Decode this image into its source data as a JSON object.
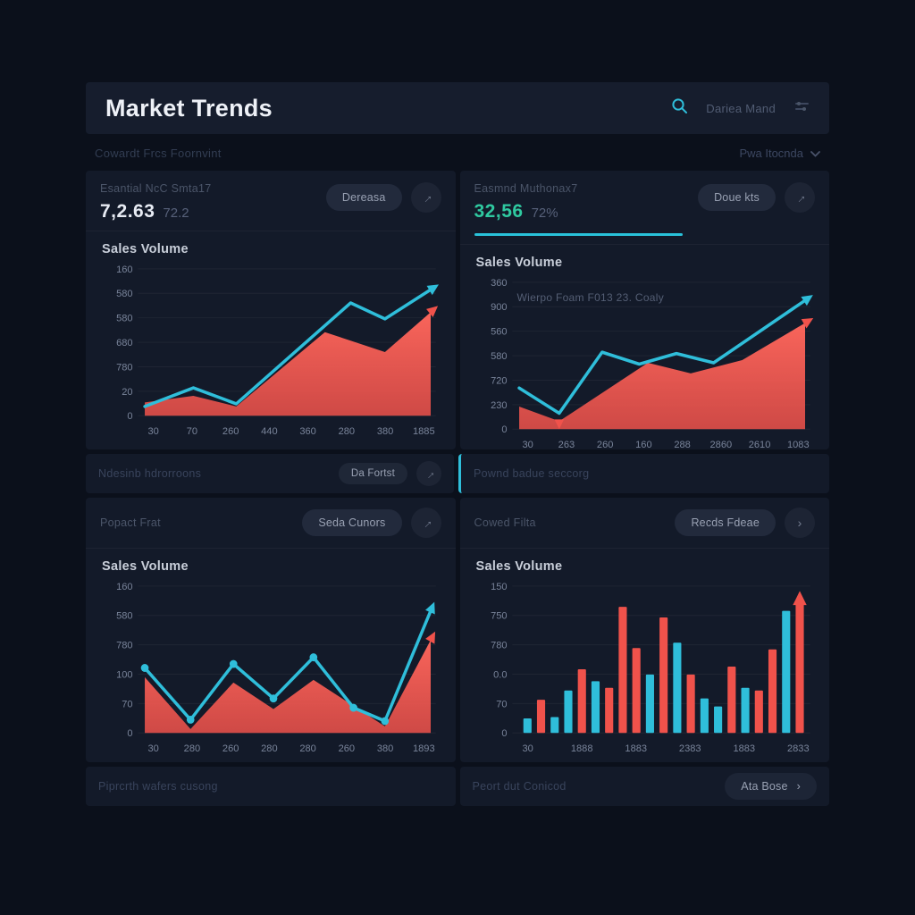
{
  "header": {
    "title": "Market Trends",
    "search_text": "Dariea Mand"
  },
  "subheader": {
    "left_text": "Cowardt Frcs Foornvint",
    "dropdown_label": "Pwa Itocnda"
  },
  "colors": {
    "cyan": "#2fbeda",
    "red": "#f0524b",
    "redLight": "#f9655b",
    "green": "#2fc9a0",
    "tick": "#79849a"
  },
  "panels": [
    {
      "label": "Esantial NcC Smta17",
      "value": "7,2.63",
      "suffix": "72.2",
      "button": "Dereasa",
      "chart": {
        "type": "area-line",
        "title": "Sales Volume",
        "y_ticks": [
          "160",
          "580",
          "580",
          "680",
          "780",
          "20",
          "0"
        ],
        "x_ticks": [
          "30",
          "70",
          "260",
          "440",
          "360",
          "280",
          "380",
          "1885"
        ],
        "line": [
          [
            0,
            0.07
          ],
          [
            0.17,
            0.21
          ],
          [
            0.32,
            0.09
          ],
          [
            0.72,
            0.85
          ],
          [
            0.84,
            0.73
          ],
          [
            1,
            0.95
          ]
        ],
        "area": [
          [
            0,
            0.1
          ],
          [
            0.17,
            0.15
          ],
          [
            0.32,
            0.07
          ],
          [
            0.63,
            0.63
          ],
          [
            0.84,
            0.48
          ],
          [
            1,
            0.78
          ]
        ],
        "line_arrow": true,
        "area_arrow": true,
        "markers": false
      }
    },
    {
      "label": "Easmnd Muthonax7",
      "value": "32,56",
      "suffix": "72%",
      "button": "Doue kts",
      "annotation": "Wierpo Foam F013 23. Coaly",
      "chart": {
        "type": "area-line",
        "title": "Sales Volume",
        "y_ticks": [
          "360",
          "900",
          "560",
          "580",
          "720",
          "230",
          "0"
        ],
        "x_ticks": [
          "30",
          "263",
          "260",
          "160",
          "288",
          "2860",
          "2610",
          "1083"
        ],
        "line": [
          [
            0,
            0.31
          ],
          [
            0.14,
            0.12
          ],
          [
            0.29,
            0.58
          ],
          [
            0.42,
            0.49
          ],
          [
            0.55,
            0.57
          ],
          [
            0.68,
            0.5
          ],
          [
            1,
            0.97
          ]
        ],
        "area": [
          [
            0,
            0.17
          ],
          [
            0.14,
            0.06
          ],
          [
            0.45,
            0.5
          ],
          [
            0.6,
            0.42
          ],
          [
            0.78,
            0.52
          ],
          [
            1,
            0.8
          ]
        ],
        "line_arrow": true,
        "area_arrow": true,
        "markers": false,
        "down_marker": [
          0.14,
          0.12
        ]
      }
    },
    {
      "label": "Popact Frat",
      "button": "Seda Cunors",
      "chart": {
        "type": "area-line",
        "title": "Sales Volume",
        "y_ticks": [
          "160",
          "580",
          "780",
          "100",
          "70",
          "0"
        ],
        "x_ticks": [
          "30",
          "280",
          "260",
          "280",
          "280",
          "260",
          "380",
          "1893"
        ],
        "line": [
          [
            0,
            0.49
          ],
          [
            0.16,
            0.1
          ],
          [
            0.31,
            0.52
          ],
          [
            0.45,
            0.26
          ],
          [
            0.59,
            0.57
          ],
          [
            0.73,
            0.19
          ],
          [
            0.84,
            0.09
          ],
          [
            1,
            0.92
          ]
        ],
        "area": [
          [
            0,
            0.42
          ],
          [
            0.16,
            0.03
          ],
          [
            0.31,
            0.38
          ],
          [
            0.45,
            0.18
          ],
          [
            0.59,
            0.4
          ],
          [
            0.84,
            0.05
          ],
          [
            1,
            0.7
          ]
        ],
        "line_arrow": true,
        "area_arrow": true,
        "markers": true
      }
    },
    {
      "label": "Cowed Filta",
      "button": "Recds Fdeae",
      "chart": {
        "type": "bar",
        "title": "Sales Volume",
        "y_ticks": [
          "150",
          "750",
          "780",
          "0.0",
          "70",
          "0"
        ],
        "x_ticks": [
          "30",
          "1888",
          "1883",
          "2383",
          "1883",
          "2833"
        ],
        "bars": [
          {
            "c": "t",
            "h": 0.11
          },
          {
            "c": "r",
            "h": 0.25
          },
          {
            "c": "t",
            "h": 0.12
          },
          {
            "c": "t",
            "h": 0.32
          },
          {
            "c": "r",
            "h": 0.48
          },
          {
            "c": "t",
            "h": 0.39
          },
          {
            "c": "r",
            "h": 0.34
          },
          {
            "c": "r",
            "h": 0.95
          },
          {
            "c": "r",
            "h": 0.64
          },
          {
            "c": "t",
            "h": 0.44
          },
          {
            "c": "r",
            "h": 0.87
          },
          {
            "c": "t",
            "h": 0.68
          },
          {
            "c": "r",
            "h": 0.44
          },
          {
            "c": "t",
            "h": 0.26
          },
          {
            "c": "t",
            "h": 0.2
          },
          {
            "c": "r",
            "h": 0.5
          },
          {
            "c": "t",
            "h": 0.34
          },
          {
            "c": "r",
            "h": 0.32
          },
          {
            "c": "r",
            "h": 0.63
          },
          {
            "c": "t",
            "h": 0.92
          },
          {
            "c": "r",
            "h": 0.97,
            "arrow": true
          }
        ]
      }
    }
  ],
  "mid_bars": [
    {
      "text": "Ndesinb hdrorroons",
      "button": "Da Fortst"
    },
    {
      "text": "Pownd badue seccorg"
    }
  ],
  "footer_bars": [
    {
      "text": "Piprcrth wafers cusong"
    },
    {
      "text": "Peort dut Conicod",
      "button": "Ata Bose",
      "chevron": "›"
    }
  ],
  "glyphs": {
    "diag_arrow": "→",
    "chevron_right": "›"
  }
}
